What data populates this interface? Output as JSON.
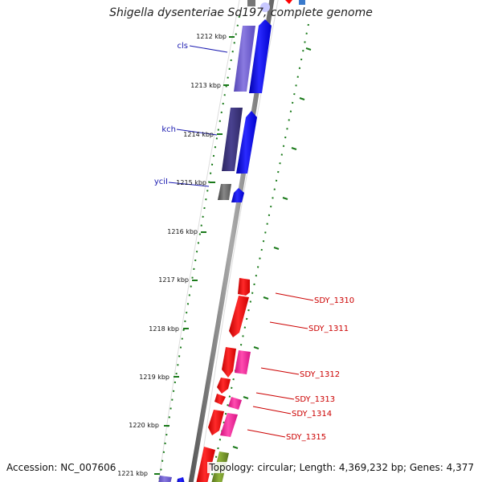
{
  "title": "Shigella dysenteriae Sd197, complete genome",
  "footer": {
    "accession": "Accession: NC_007606",
    "summary": "Topology: circular; Length: 4,369,232 bp; Genes: 4,377"
  },
  "kbp_ticks": [
    "1212 kbp",
    "1213 kbp",
    "1214 kbp",
    "1215 kbp",
    "1216 kbp",
    "1217 kbp",
    "1218 kbp",
    "1219 kbp",
    "1220 kbp",
    "1221 kbp"
  ],
  "left_genes": [
    {
      "name": "cls",
      "color": "#1a1ab0"
    },
    {
      "name": "kch",
      "color": "#1a1ab0"
    },
    {
      "name": "yciI",
      "color": "#1a1ab0"
    }
  ],
  "right_genes": [
    {
      "name": "SDY_1310",
      "color": "#cc0000"
    },
    {
      "name": "SDY_1311",
      "color": "#cc0000"
    },
    {
      "name": "SDY_1312",
      "color": "#cc0000"
    },
    {
      "name": "SDY_1313",
      "color": "#cc0000"
    },
    {
      "name": "SDY_1314",
      "color": "#cc0000"
    },
    {
      "name": "SDY_1315",
      "color": "#cc0000"
    }
  ],
  "colors": {
    "backbone": "#8a8a8a",
    "tick": "#1a7a1a",
    "blue": "#0000ff",
    "purple": "#6a5acd",
    "dark_slate": "#3c3478",
    "red": "#ff0000",
    "pink": "#ff1493",
    "olive": "#6b8e23",
    "gray_block": "#666666"
  }
}
